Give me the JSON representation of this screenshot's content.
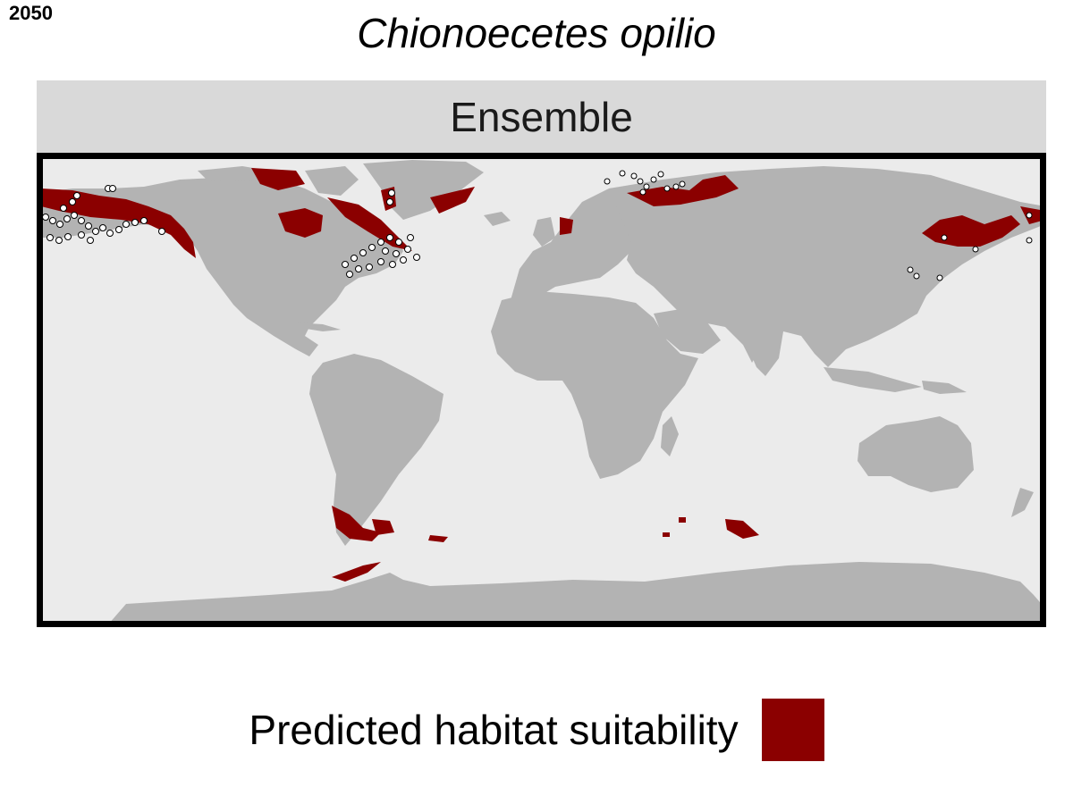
{
  "header": {
    "year": "2050",
    "title": "Chionoecetes opilio"
  },
  "panel": {
    "strip_label": "Ensemble"
  },
  "legend": {
    "label": "Predicted habitat suitability"
  },
  "colors": {
    "ocean": "#ebebeb",
    "land": "#b3b3b3",
    "suitable": "#8b0000",
    "frame": "#000000",
    "strip": "#d9d9d9",
    "occurrence_fill": "#ffffff",
    "occurrence_stroke": "#000000"
  }
}
